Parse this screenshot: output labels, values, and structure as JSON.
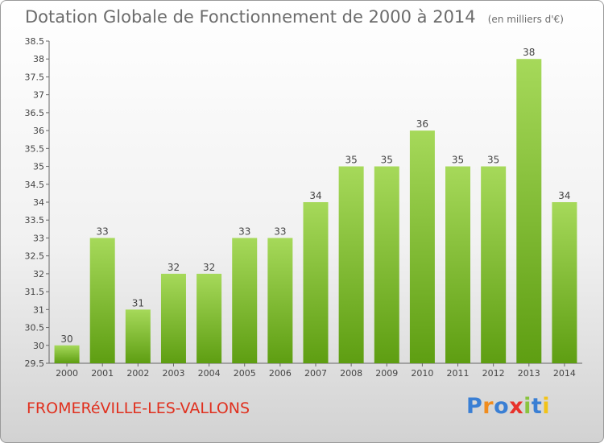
{
  "header": {
    "title": "Dotation Globale de Fonctionnement de 2000 à 2014",
    "unit": "(en milliers d'€)"
  },
  "footer": {
    "commune": "FROMERéVILLE-LES-VALLONS",
    "logo": "Proxiti"
  },
  "colors": {
    "bar_light": "#a6d95a",
    "bar_dark": "#5e9e12",
    "commune_text": "#e0301e"
  },
  "chart_data": {
    "type": "bar",
    "title": "Dotation Globale de Fonctionnement de 2000 à 2014",
    "subtitle": "(en milliers d'€)",
    "categories": [
      "2000",
      "2001",
      "2002",
      "2003",
      "2004",
      "2005",
      "2006",
      "2007",
      "2008",
      "2009",
      "2010",
      "2011",
      "2012",
      "2013",
      "2014"
    ],
    "values": [
      30,
      33,
      31,
      32,
      32,
      33,
      33,
      34,
      35,
      35,
      36,
      35,
      35,
      38,
      34
    ],
    "ylim": [
      29.5,
      38.5
    ],
    "yticks": [
      "29.5",
      "30",
      "30.5",
      "31",
      "31.5",
      "32",
      "32.5",
      "33",
      "33.5",
      "34",
      "34.5",
      "35",
      "35.5",
      "36",
      "36.5",
      "37",
      "37.5",
      "38",
      "38.5"
    ],
    "grid": false,
    "legend": "none"
  }
}
